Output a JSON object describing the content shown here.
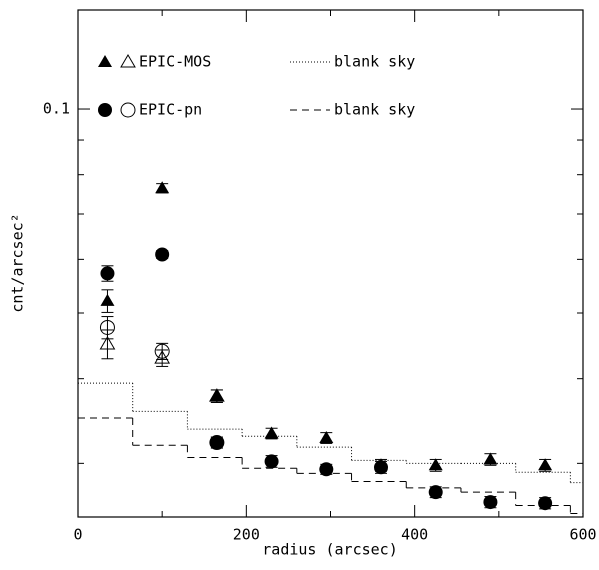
{
  "chart_data": {
    "type": "scatter",
    "x_label": "radius (arcsec)",
    "y_label": "cnt/arcsec²",
    "xlim": [
      0,
      600
    ],
    "xticks": [
      0,
      200,
      400,
      600
    ],
    "xminorticks": [
      100,
      300,
      500
    ],
    "ylim": [
      0.025,
      0.14
    ],
    "y_log": true,
    "yticks": [
      0.1
    ],
    "yminorticks": [
      0.09,
      0.08,
      0.07,
      0.06,
      0.05,
      0.04,
      0.03
    ],
    "x": [
      35,
      100,
      165,
      230,
      295,
      360,
      425,
      490,
      555
    ],
    "series": [
      {
        "name": "EPIC-MOS",
        "marker": "triangle",
        "color": "#000",
        "values": [
          0.0521,
          0.0764,
          0.0377,
          0.0332,
          0.0327,
          0.0298,
          0.0298,
          0.0304,
          0.0298
        ],
        "errors": [
          0.002,
          0.0012,
          0.0008,
          0.0006,
          0.0006,
          0.0006,
          0.0006,
          0.0006,
          0.0006
        ],
        "open_values": [
          0.045,
          0.0429,
          0.0377,
          null,
          null,
          null,
          null,
          null,
          null
        ],
        "open_errors": [
          0.0022,
          0.0012,
          0.0008,
          null,
          null,
          null,
          null,
          null,
          null
        ]
      },
      {
        "name": "EPIC-pn",
        "marker": "circle",
        "color": "#000",
        "values": [
          0.0572,
          0.061,
          0.0322,
          0.0302,
          0.0294,
          0.0296,
          0.0272,
          0.0263,
          0.0262
        ],
        "errors": [
          0.0015,
          0.0008,
          0.0006,
          0.0006,
          0.0005,
          0.0006,
          0.0005,
          0.0005,
          0.0005
        ],
        "open_values": [
          0.0476,
          0.0439,
          0.0322,
          null,
          null,
          null,
          null,
          null,
          null
        ],
        "open_errors": [
          0.0018,
          0.0012,
          0.0006,
          null,
          null,
          null,
          null,
          null,
          null
        ]
      }
    ],
    "steps": [
      {
        "name": "blank sky",
        "dash": "dotted",
        "bins": [
          0,
          65,
          130,
          195,
          260,
          325,
          390,
          455,
          520,
          585,
          600
        ],
        "values": [
          0.0394,
          0.0358,
          0.0337,
          0.0329,
          0.0317,
          0.0303,
          0.03,
          0.03,
          0.0291,
          0.0281
        ]
      },
      {
        "name": "blank sky",
        "dash": "dashed",
        "bins": [
          0,
          65,
          130,
          195,
          260,
          325,
          390,
          455,
          520,
          585,
          600
        ],
        "values": [
          0.035,
          0.0319,
          0.0306,
          0.0295,
          0.029,
          0.0282,
          0.0276,
          0.0272,
          0.026,
          0.0253
        ]
      }
    ]
  }
}
